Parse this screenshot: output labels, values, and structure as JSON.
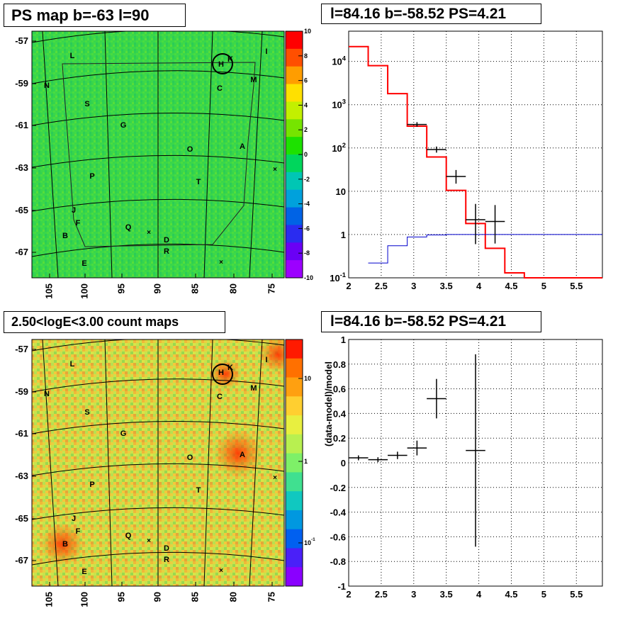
{
  "titles": {
    "top_left": "PS map b=-63 l=90",
    "top_right": "l=84.16 b=-58.52 PS=4.21",
    "bottom_left": "2.50<logE<3.00 count maps",
    "bottom_right": "l=84.16 b=-58.52 PS=4.21"
  },
  "map_axes": {
    "y_ticks": [
      "-57",
      "-59",
      "-61",
      "-63",
      "-65",
      "-67"
    ],
    "x_ticks": [
      "105",
      "100",
      "95",
      "90",
      "85",
      "80",
      "75"
    ]
  },
  "source_labels": [
    "L",
    "I",
    "H",
    "K",
    "N",
    "C",
    "M",
    "S",
    "G",
    "O",
    "A",
    "P",
    "T",
    "J",
    "F",
    "Q",
    "B",
    "D",
    "R",
    "E"
  ],
  "ps_colorbar": {
    "ticks": [
      "10",
      "8",
      "6",
      "4",
      "2",
      "0",
      "-2",
      "-4",
      "-6",
      "-8",
      "-10"
    ],
    "colors": [
      "#ff0000",
      "#ff4f00",
      "#ff9d00",
      "#ffe000",
      "#c3f000",
      "#76e400",
      "#1de100",
      "#00d65c",
      "#00c6b4",
      "#00a1dc",
      "#0063e5",
      "#2a2cf0",
      "#6a00f5",
      "#9c00ff"
    ]
  },
  "count_colorbar": {
    "ticks": [
      "10",
      "1",
      "10^-1"
    ],
    "colors": [
      "#ff1a00",
      "#ff7000",
      "#ffa010",
      "#ffcf30",
      "#e8ef40",
      "#b8f050",
      "#7ef068",
      "#40e090",
      "#10c8c0",
      "#0098e0",
      "#0060f0",
      "#4a20f8",
      "#8a00ff"
    ]
  },
  "chart_data": [
    {
      "type": "line",
      "log_scale_y": true,
      "xlim": [
        2,
        5.9
      ],
      "ylim": [
        0.1,
        50000
      ],
      "x_ticks": [
        "2",
        "2.5",
        "3",
        "3.5",
        "4",
        "4.5",
        "5",
        "5.5"
      ],
      "y_ticks": [
        "10^-1",
        "1",
        "10",
        "10^2",
        "10^3",
        "10^4"
      ],
      "grid": true,
      "series": [
        {
          "color": "#ff0000",
          "style": "step",
          "bin_edges": [
            2.0,
            2.3,
            2.6,
            2.9,
            3.2,
            3.5,
            3.8,
            4.1,
            4.4,
            4.7,
            5.0,
            5.3,
            5.6,
            5.9
          ],
          "values": [
            22000,
            8000,
            1800,
            320,
            62,
            10.5,
            1.8,
            0.48,
            0.13,
            0.1,
            0.1,
            0.1,
            0.1
          ]
        },
        {
          "color": "#0000cc",
          "style": "step",
          "bin_edges": [
            2.3,
            2.6,
            2.9,
            3.2,
            3.5,
            3.8,
            4.1,
            4.4,
            4.7,
            5.0,
            5.3,
            5.6,
            5.9
          ],
          "values": [
            0.22,
            0.55,
            0.88,
            0.98,
            1,
            1,
            1,
            1,
            1,
            1,
            1,
            1
          ]
        },
        {
          "color": "#000000",
          "style": "error_points",
          "points": [
            {
              "x": 3.05,
              "y": 350,
              "xerr": 0.15,
              "ylo": 310,
              "yhi": 395
            },
            {
              "x": 3.35,
              "y": 92,
              "xerr": 0.15,
              "ylo": 78,
              "yhi": 108
            },
            {
              "x": 3.65,
              "y": 22,
              "xerr": 0.15,
              "ylo": 15,
              "yhi": 31
            },
            {
              "x": 3.95,
              "y": 2.2,
              "xerr": 0.15,
              "ylo": 0.6,
              "yhi": 5.1
            },
            {
              "x": 4.25,
              "y": 2.0,
              "xerr": 0.15,
              "ylo": 0.62,
              "yhi": 4.8
            }
          ]
        }
      ]
    },
    {
      "type": "scatter",
      "ylabel": "(data-model)/model",
      "xlim": [
        2,
        5.9
      ],
      "ylim": [
        -1,
        1
      ],
      "x_ticks": [
        "2",
        "2.5",
        "3",
        "3.5",
        "4",
        "4.5",
        "5",
        "5.5"
      ],
      "y_ticks": [
        "-1",
        "-0.8",
        "-0.6",
        "-0.4",
        "-0.2",
        "0",
        "0.2",
        "0.4",
        "0.6",
        "0.8",
        "1"
      ],
      "grid": true,
      "series": [
        {
          "color": "#000000",
          "points": [
            {
              "x": 2.15,
              "y": 0.04,
              "xerr": 0.15,
              "yerr": 0.02
            },
            {
              "x": 2.45,
              "y": 0.025,
              "xerr": 0.15,
              "yerr": 0.02
            },
            {
              "x": 2.75,
              "y": 0.06,
              "xerr": 0.15,
              "yerr": 0.03
            },
            {
              "x": 3.05,
              "y": 0.12,
              "xerr": 0.15,
              "yerr": 0.06
            },
            {
              "x": 3.35,
              "y": 0.52,
              "xerr": 0.15,
              "yerr": 0.16
            },
            {
              "x": 3.95,
              "y": 0.1,
              "xerr": 0.15,
              "yerr": 0.78
            }
          ]
        }
      ]
    }
  ]
}
